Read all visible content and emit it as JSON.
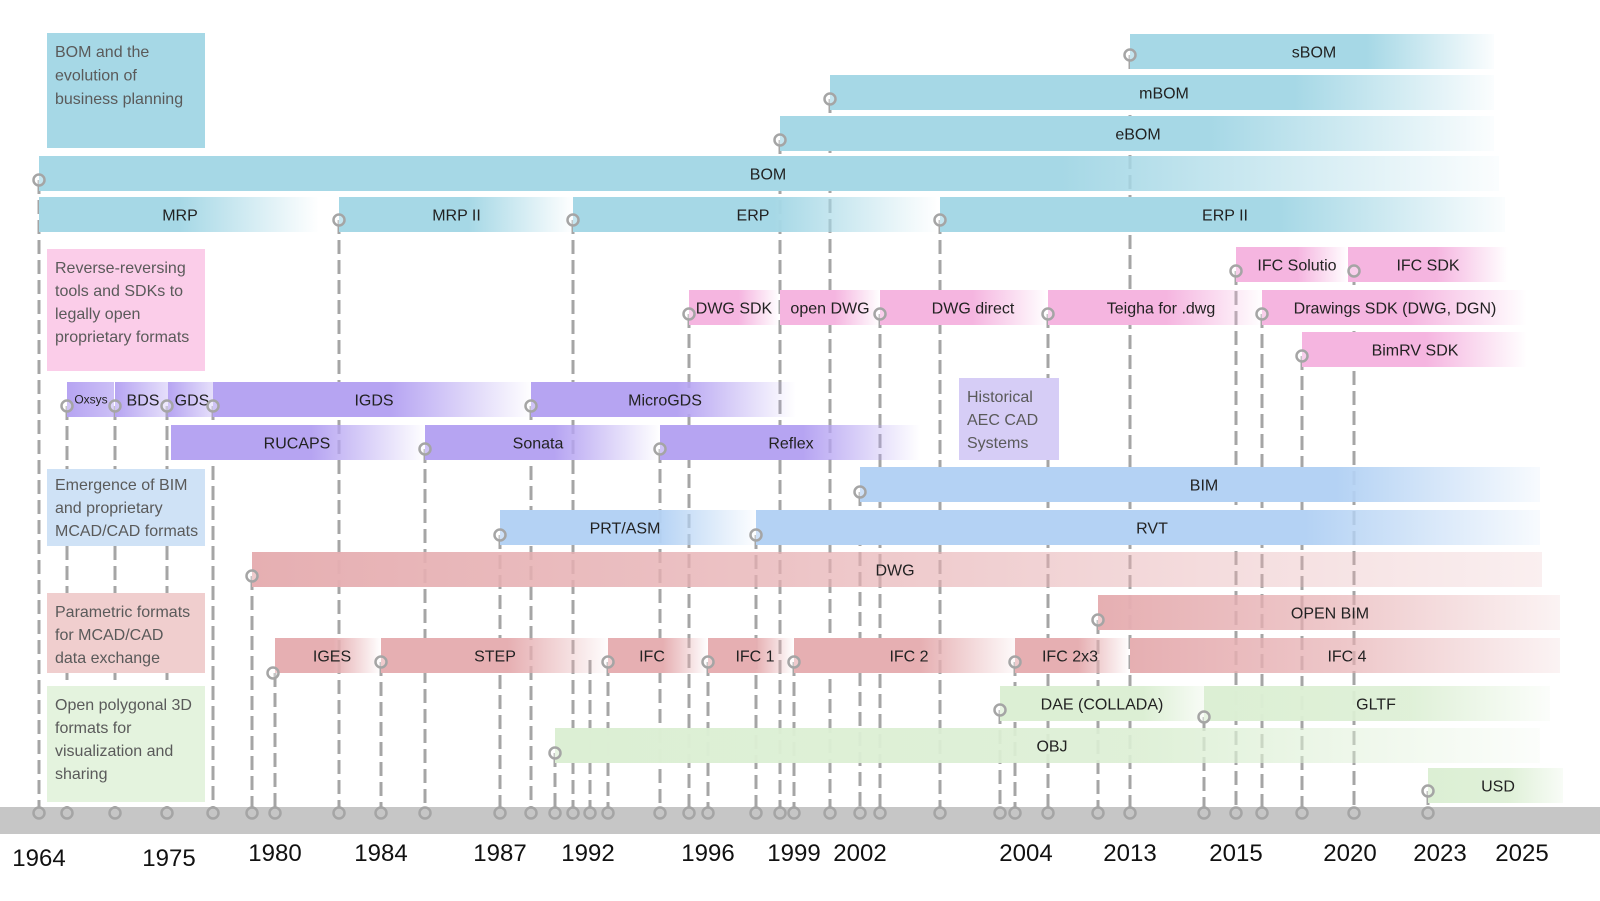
{
  "colors": {
    "bom": "#a6d8e6",
    "legend_bom": "#a6d8e6",
    "pink": "#f5b5e0",
    "legend_pink": "#fbcde9",
    "purple": "#b6a4f2",
    "legend_purple": "#d6cdf6",
    "blue": "#b4d2f4",
    "legend_blue": "#cfe2f6",
    "red": "#e6afb2",
    "legend_red": "#f0cece",
    "green": "#dcefd4",
    "legend_green": "#e4f3de",
    "axis": "#c6c6c6",
    "marker": "#a5a5a5"
  },
  "legend": [
    {
      "id": "bom",
      "lines": [
        "BOM and the",
        "evolution of",
        "business planning"
      ]
    },
    {
      "id": "reverse",
      "lines": [
        "Reverse-reversing",
        "tools and SDKs to",
        "legally open",
        "proprietary formats"
      ]
    },
    {
      "id": "historical",
      "lines": [
        "Historical",
        "AEC CAD",
        "Systems"
      ]
    },
    {
      "id": "bim",
      "lines": [
        "Emergence of BIM",
        "and proprietary",
        "MCAD/CAD formats"
      ]
    },
    {
      "id": "parametric",
      "lines": [
        "Parametric formats",
        "for MCAD/CAD",
        "data exchange"
      ]
    },
    {
      "id": "polygonal",
      "lines": [
        "Open polygonal 3D",
        "formats for",
        "visualization and",
        "sharing"
      ]
    }
  ],
  "bars": [
    {
      "label": "sBOM",
      "group": "bom"
    },
    {
      "label": "mBOM",
      "group": "bom"
    },
    {
      "label": "eBOM",
      "group": "bom"
    },
    {
      "label": "BOM",
      "group": "bom"
    },
    {
      "label": "MRP",
      "group": "bom"
    },
    {
      "label": "MRP II",
      "group": "bom"
    },
    {
      "label": "ERP",
      "group": "bom"
    },
    {
      "label": "ERP II",
      "group": "bom"
    },
    {
      "label": "IFC Solutio",
      "group": "pink"
    },
    {
      "label": "IFC SDK",
      "group": "pink"
    },
    {
      "label": "DWG SDK",
      "group": "pink"
    },
    {
      "label": "open DWG",
      "group": "pink"
    },
    {
      "label": "DWG direct",
      "group": "pink"
    },
    {
      "label": "Teigha for .dwg",
      "group": "pink"
    },
    {
      "label": "Drawings SDK (DWG, DGN)",
      "group": "pink"
    },
    {
      "label": "BimRV SDK",
      "group": "pink"
    },
    {
      "label": "Oxsys",
      "group": "purple"
    },
    {
      "label": "BDS",
      "group": "purple"
    },
    {
      "label": "GDS",
      "group": "purple"
    },
    {
      "label": "IGDS",
      "group": "purple"
    },
    {
      "label": "MicroGDS",
      "group": "purple"
    },
    {
      "label": "RUCAPS",
      "group": "purple"
    },
    {
      "label": "Sonata",
      "group": "purple"
    },
    {
      "label": "Reflex",
      "group": "purple"
    },
    {
      "label": "BIM",
      "group": "blue"
    },
    {
      "label": "PRT/ASM",
      "group": "blue"
    },
    {
      "label": "RVT",
      "group": "blue"
    },
    {
      "label": "DWG",
      "group": "red"
    },
    {
      "label": "OPEN BIM",
      "group": "red"
    },
    {
      "label": "IGES",
      "group": "red"
    },
    {
      "label": "STEP",
      "group": "red"
    },
    {
      "label": "IFC",
      "group": "red"
    },
    {
      "label": "IFC 1",
      "group": "red"
    },
    {
      "label": "IFC 2",
      "group": "red"
    },
    {
      "label": "IFC 2x3",
      "group": "red"
    },
    {
      "label": "IFC 4",
      "group": "red"
    },
    {
      "label": "DAE (COLLADA)",
      "group": "green"
    },
    {
      "label": "GLTF",
      "group": "green"
    },
    {
      "label": "OBJ",
      "group": "green"
    },
    {
      "label": "USD",
      "group": "green"
    }
  ],
  "axis_years": [
    "1964",
    "1975",
    "1980",
    "1984",
    "1987",
    "1992",
    "1996",
    "1999",
    "2002",
    "2004",
    "2013",
    "2015",
    "2020",
    "2023",
    "2025"
  ]
}
